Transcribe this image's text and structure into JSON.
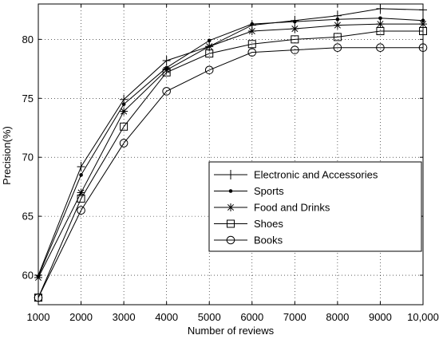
{
  "chart_data": {
    "type": "line",
    "xlabel": "Number of reviews",
    "ylabel": "Precision(%)",
    "x": [
      1000,
      2000,
      3000,
      4000,
      5000,
      6000,
      7000,
      8000,
      9000,
      10000
    ],
    "xticks": [
      "1000",
      "2000",
      "3000",
      "4000",
      "5000",
      "6000",
      "7000",
      "8000",
      "9000",
      "10,000"
    ],
    "yticks": [
      "60",
      "65",
      "70",
      "75",
      "80"
    ],
    "xlim": [
      1000,
      10000
    ],
    "ylim": [
      57.5,
      83
    ],
    "grid": true,
    "legend_position": "bottom-right",
    "series": [
      {
        "name": "Electronic and Accessories",
        "marker": "plus",
        "values": [
          60.0,
          69.2,
          74.9,
          78.2,
          79.4,
          81.2,
          81.6,
          82.0,
          82.6,
          82.5
        ]
      },
      {
        "name": "Sports",
        "marker": "dot",
        "values": [
          59.9,
          68.5,
          74.5,
          77.6,
          79.9,
          81.3,
          81.5,
          81.7,
          81.8,
          81.6
        ]
      },
      {
        "name": "Food and Drinks",
        "marker": "star",
        "values": [
          59.8,
          67.0,
          73.9,
          77.4,
          79.4,
          80.7,
          80.9,
          81.2,
          81.3,
          81.3
        ]
      },
      {
        "name": "Shoes",
        "marker": "square",
        "values": [
          58.1,
          66.5,
          72.6,
          77.2,
          78.8,
          79.6,
          80.0,
          80.2,
          80.7,
          80.7
        ]
      },
      {
        "name": "Books",
        "marker": "circle",
        "values": [
          58.1,
          65.5,
          71.2,
          75.6,
          77.4,
          78.9,
          79.1,
          79.3,
          79.3,
          79.3
        ]
      }
    ]
  }
}
